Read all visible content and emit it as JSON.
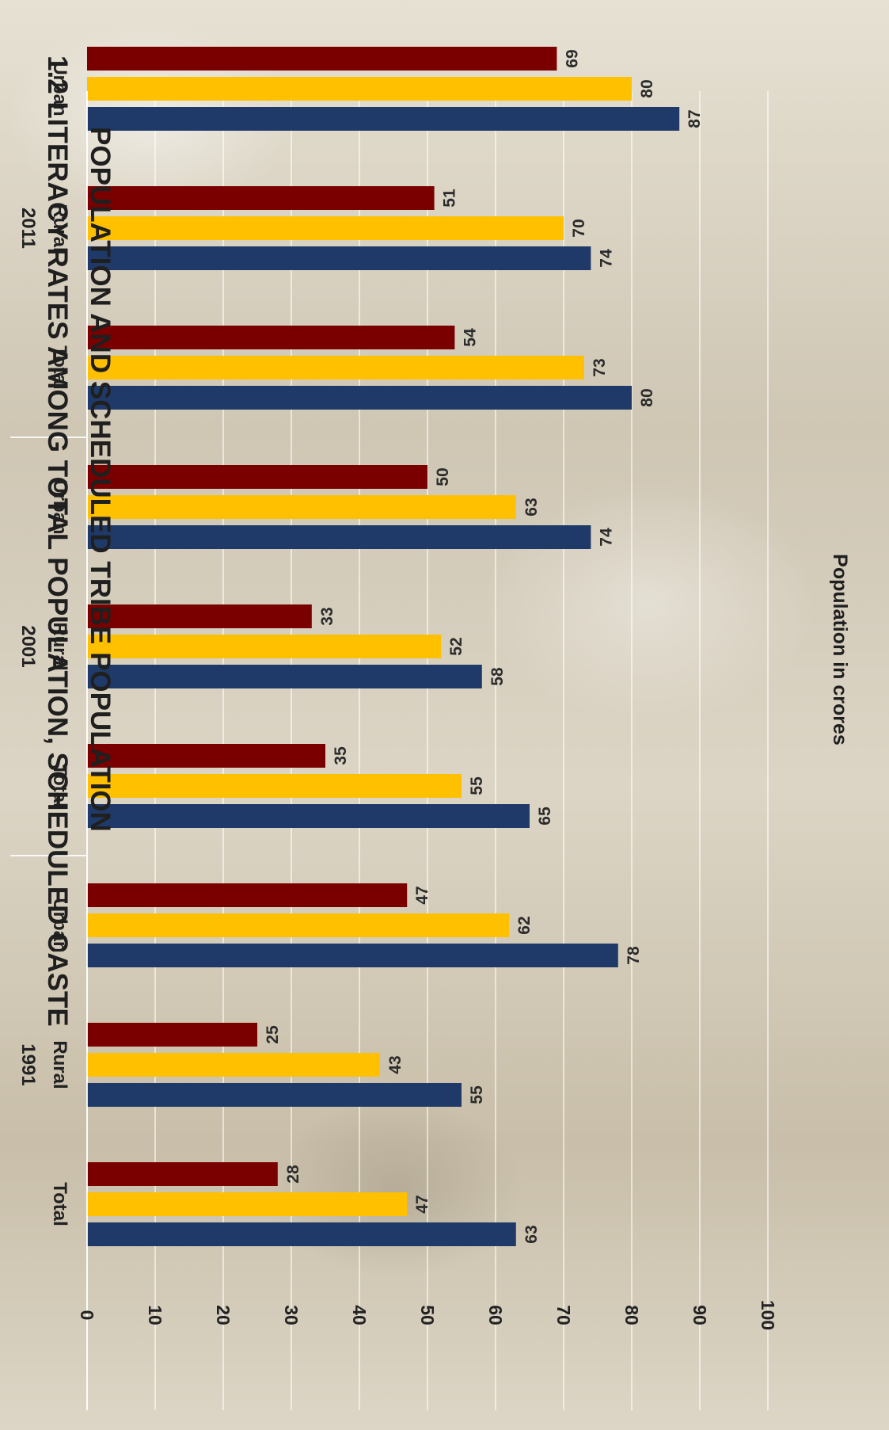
{
  "chart_data": {
    "type": "bar",
    "orientation": "vertical bars, chart rotated 90° clockwise",
    "title_line1": "1.2 LITERACY RATES AMONG TOTAL POPULATION, SCHEDULED CASTE",
    "title_line2": "POPULATION AND SCHEDULED TRIBE POPULATION",
    "ylabel": "Population in crores",
    "xlabel": "",
    "ylim": [
      0,
      100
    ],
    "yticks": [
      0,
      10,
      20,
      30,
      40,
      50,
      60,
      70,
      80,
      90,
      100
    ],
    "groups": [
      {
        "year": "1991",
        "categories": [
          "Total",
          "Rural",
          "Urban"
        ]
      },
      {
        "year": "2001",
        "categories": [
          "Total",
          "Rural",
          "Urban"
        ]
      },
      {
        "year": "2011",
        "categories": [
          "Total",
          "Rural",
          "Urban"
        ]
      }
    ],
    "categories": [
      "Total 1991",
      "Rural 1991",
      "Urban 1991",
      "Total 2001",
      "Rural 2001",
      "Urban 2001",
      "Total 2011",
      "Rural 2011",
      "Urban 2011"
    ],
    "series": [
      {
        "color": "#1f3a68",
        "values": [
          63,
          55,
          78,
          65,
          58,
          74,
          80,
          74,
          87
        ]
      },
      {
        "color": "#ffc000",
        "values": [
          47,
          43,
          62,
          55,
          52,
          63,
          73,
          70,
          80
        ]
      },
      {
        "color": "#7a0000",
        "values": [
          28,
          25,
          47,
          35,
          33,
          50,
          54,
          51,
          69
        ]
      }
    ],
    "grid": true,
    "legend": "none"
  }
}
